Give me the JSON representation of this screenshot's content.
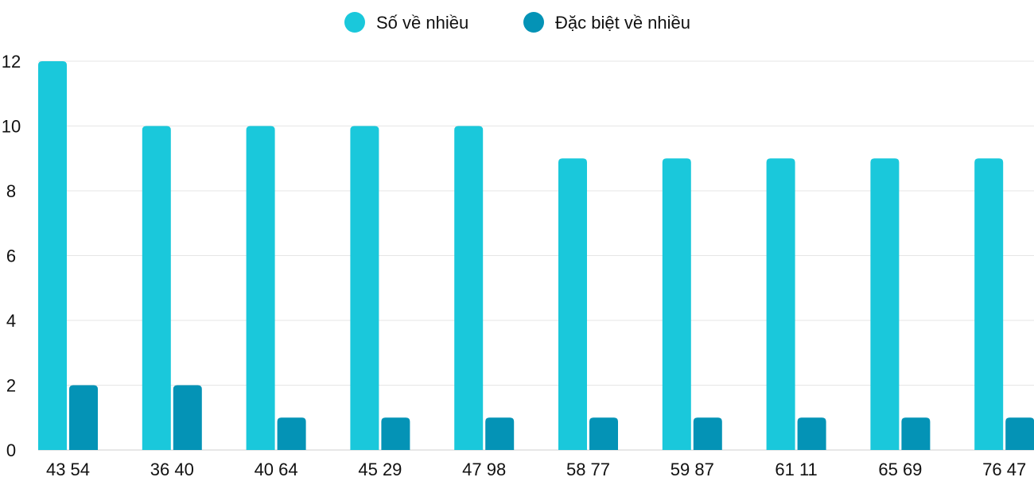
{
  "chart_data": {
    "type": "bar",
    "title": "",
    "xlabel": "",
    "ylabel": "",
    "ylim": [
      0,
      12
    ],
    "yticks": [
      0,
      2,
      4,
      6,
      8,
      10,
      12
    ],
    "grid": true,
    "legend_placement": "top-center",
    "categories": [
      "43 54",
      "36 40",
      "40 64",
      "45 29",
      "47 98",
      "58 77",
      "59 87",
      "61 11",
      "65 69",
      "76 47"
    ],
    "series": [
      {
        "name": "Số về nhiều",
        "color": "#1ac8db",
        "values": [
          12,
          10,
          10,
          10,
          10,
          9,
          9,
          9,
          9,
          9
        ]
      },
      {
        "name": "Đặc biệt về nhiều",
        "color": "#0493b6",
        "values": [
          2,
          2,
          1,
          1,
          1,
          1,
          1,
          1,
          1,
          1
        ]
      }
    ]
  }
}
